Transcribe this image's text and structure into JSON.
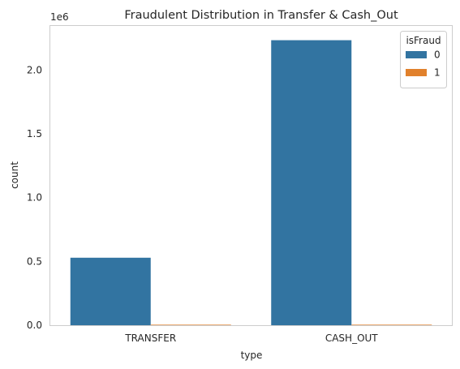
{
  "chart_data": {
    "type": "bar",
    "title": "Fraudulent Distribution in Transfer & Cash_Out",
    "xlabel": "type",
    "ylabel": "count",
    "categories": [
      "TRANSFER",
      "CASH_OUT"
    ],
    "series": [
      {
        "name": "0",
        "color": "#3274a1",
        "values": [
          528812,
          2233384
        ]
      },
      {
        "name": "1",
        "color": "#e1812c",
        "values": [
          4097,
          4116
        ]
      }
    ],
    "ylim": [
      0,
      2345053
    ],
    "yticks": [
      0.0,
      0.5,
      1.0,
      1.5,
      2.0
    ],
    "ytick_labels": [
      "0.0",
      "0.5",
      "1.0",
      "1.5",
      "2.0"
    ],
    "y_scale_label": "1e6",
    "y_tick_multiplier": 1000000,
    "legend": {
      "title": "isFraud",
      "placement": "top-right"
    },
    "grid": false
  }
}
